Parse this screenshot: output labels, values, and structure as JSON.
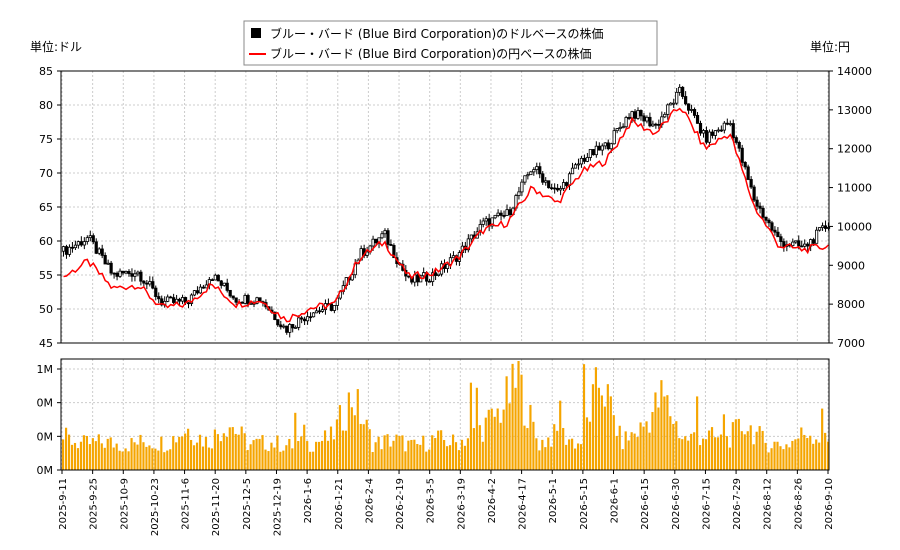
{
  "legend": {
    "usd_label": "ブルー・バード (Blue Bird Corporation)のドルベースの株価",
    "jpy_label": "ブルー・バード (Blue Bird Corporation)の円ベースの株価",
    "usd_color": "#000000",
    "jpy_color": "#ff0000"
  },
  "left_unit": "単位:ドル",
  "right_unit": "単位:円",
  "chart_data": [
    {
      "type": "candlestick",
      "y_left": {
        "min": 45,
        "max": 85,
        "ticks": [
          "45",
          "50",
          "55",
          "60",
          "65",
          "70",
          "75",
          "80",
          "85"
        ]
      },
      "y_right": {
        "min": 7000,
        "max": 14000,
        "ticks": [
          "7000",
          "8000",
          "9000",
          "10000",
          "11000",
          "12000",
          "13000",
          "14000"
        ]
      },
      "x_ticks": [
        "2025-9-11",
        "2025-9-25",
        "2025-10-9",
        "2025-10-23",
        "2025-11-6",
        "2025-11-20",
        "2025-12-5",
        "2025-12-19",
        "2026-1-6",
        "2026-1-21",
        "2026-2-4",
        "2026-2-19",
        "2026-3-5",
        "2026-3-19",
        "2026-4-2",
        "2026-4-17",
        "2026-5-1",
        "2026-5-15",
        "2026-6-1",
        "2026-6-15",
        "2026-6-30",
        "2026-7-15",
        "2026-7-29",
        "2026-8-12",
        "2026-8-26",
        "2026-9-10"
      ],
      "usd_close_anchors": [
        58.5,
        60.5,
        55.0,
        55.5,
        51.0,
        51.0,
        55.0,
        51.5,
        51.5,
        47.0,
        49.5,
        50.5,
        58.0,
        61.0,
        54.0,
        55.0,
        58.0,
        62.5,
        64.0,
        71.0,
        67.0,
        72.0,
        74.0,
        79.0,
        77.0,
        82.0,
        75.0,
        77.5,
        66.0,
        60.0,
        59.0,
        62.5
      ],
      "jpy_close_anchors": [
        8700,
        9100,
        8400,
        8500,
        7900,
        8000,
        8500,
        8000,
        8100,
        7600,
        7900,
        8000,
        9200,
        9600,
        8700,
        8800,
        9200,
        9900,
        10100,
        11000,
        10600,
        11400,
        11700,
        12700,
        12400,
        13100,
        12000,
        12400,
        10500,
        9500,
        9400,
        9500
      ],
      "grid": true
    },
    {
      "type": "bar",
      "y_ticks": [
        "0M",
        "0M",
        "0M",
        "1M"
      ],
      "bar_color": "#f5a500",
      "volume_anchors": [
        0.35,
        0.28,
        0.3,
        0.27,
        0.31,
        0.29,
        0.45,
        0.3,
        0.52,
        0.27,
        0.3,
        0.26,
        0.29,
        0.35,
        0.8,
        0.28,
        0.33,
        0.25,
        0.34,
        0.29,
        0.4,
        0.6,
        0.95,
        0.28,
        0.4,
        0.27,
        1.0,
        0.3,
        0.45,
        0.8,
        0.33,
        0.38,
        0.31,
        0.5,
        0.29,
        0.27,
        0.42,
        0.3
      ]
    }
  ]
}
